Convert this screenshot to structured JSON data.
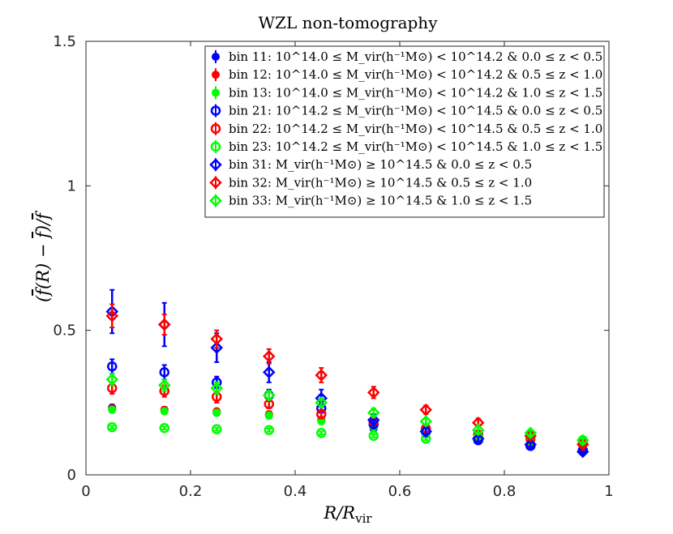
{
  "chart_data": {
    "type": "scatter",
    "title": "WZL non-tomography",
    "xlabel": "R/R_vir",
    "ylabel": "(f̄(R) − f̄)/f̄",
    "xlim": [
      0,
      1
    ],
    "ylim": [
      0,
      1.5
    ],
    "xticks": [
      "0",
      "0.2",
      "0.4",
      "0.6",
      "0.8",
      "1"
    ],
    "yticks": [
      "0",
      "0.5",
      "1",
      "1.5"
    ],
    "x": [
      0.05,
      0.15,
      0.25,
      0.35,
      0.45,
      0.55,
      0.65,
      0.75,
      0.85,
      0.95
    ],
    "legend_position": "top-right",
    "series": [
      {
        "name": "bin 11: 10^14.0 ≤ M_vir(h⁻¹M⊙) < 10^14.2 & 0.0 ≤ z < 0.5",
        "color": "#0000ff",
        "marker": "dot",
        "values": [
          0.233,
          0.225,
          0.215,
          0.205,
          0.19,
          0.16,
          0.14,
          0.12,
          0.1,
          0.08
        ],
        "errors": [
          0.01,
          0.01,
          0.01,
          0.01,
          0.01,
          0.01,
          0.01,
          0.01,
          0.01,
          0.01
        ]
      },
      {
        "name": "bin 12: 10^14.0 ≤ M_vir(h⁻¹M⊙) < 10^14.2 & 0.5 ≤ z < 1.0",
        "color": "#ff0000",
        "marker": "dot",
        "values": [
          0.23,
          0.225,
          0.22,
          0.21,
          0.19,
          0.165,
          0.14,
          0.125,
          0.11,
          0.095
        ],
        "errors": [
          0.01,
          0.01,
          0.01,
          0.01,
          0.01,
          0.01,
          0.01,
          0.01,
          0.01,
          0.01
        ]
      },
      {
        "name": "bin 13: 10^14.0 ≤ M_vir(h⁻¹M⊙) < 10^14.2 & 1.0 ≤ z < 1.5",
        "color": "#00ff00",
        "marker": "dot",
        "values": [
          0.225,
          0.22,
          0.215,
          0.205,
          0.185,
          0.165,
          0.14,
          0.125,
          0.115,
          0.1
        ],
        "errors": [
          0.01,
          0.01,
          0.01,
          0.01,
          0.01,
          0.01,
          0.01,
          0.01,
          0.01,
          0.01
        ]
      },
      {
        "name": "bin 21: 10^14.2 ≤ M_vir(h⁻¹M⊙) < 10^14.5 & 0.0 ≤ z < 0.5",
        "color": "#0000ff",
        "marker": "circle",
        "values": [
          0.375,
          0.355,
          0.32,
          0.275,
          0.23,
          0.175,
          0.15,
          0.12,
          0.1,
          0.085
        ],
        "errors": [
          0.025,
          0.025,
          0.02,
          0.02,
          0.015,
          0.015,
          0.01,
          0.01,
          0.01,
          0.01
        ]
      },
      {
        "name": "bin 22: 10^14.2 ≤ M_vir(h⁻¹M⊙) < 10^14.5 & 0.5 ≤ z < 1.0",
        "color": "#ff0000",
        "marker": "circle",
        "values": [
          0.3,
          0.29,
          0.27,
          0.245,
          0.21,
          0.185,
          0.16,
          0.14,
          0.125,
          0.11
        ],
        "errors": [
          0.02,
          0.02,
          0.02,
          0.015,
          0.015,
          0.01,
          0.01,
          0.01,
          0.01,
          0.01
        ]
      },
      {
        "name": "bin 23: 10^14.2 ≤ M_vir(h⁻¹M⊙) < 10^14.5 & 1.0 ≤ z < 1.5",
        "color": "#00ff00",
        "marker": "circle",
        "values": [
          0.165,
          0.162,
          0.158,
          0.155,
          0.145,
          0.135,
          0.125,
          0.13,
          0.135,
          0.12
        ],
        "errors": [
          0.005,
          0.005,
          0.005,
          0.005,
          0.005,
          0.005,
          0.005,
          0.005,
          0.005,
          0.005
        ]
      },
      {
        "name": "bin 31: M_vir(h⁻¹M⊙) ≥ 10^14.5 & 0.0 ≤ z < 0.5",
        "color": "#0000ff",
        "marker": "diamond",
        "values": [
          0.565,
          0.52,
          0.44,
          0.355,
          0.265,
          0.19,
          0.15,
          0.125,
          0.105,
          0.08
        ],
        "errors": [
          0.075,
          0.075,
          0.05,
          0.035,
          0.03,
          0.02,
          0.015,
          0.01,
          0.01,
          0.01
        ]
      },
      {
        "name": "bin 32: M_vir(h⁻¹M⊙) ≥ 10^14.5 & 0.5 ≤ z < 1.0",
        "color": "#ff0000",
        "marker": "diamond",
        "values": [
          0.55,
          0.52,
          0.47,
          0.41,
          0.345,
          0.285,
          0.225,
          0.18,
          0.135,
          0.105
        ],
        "errors": [
          0.04,
          0.035,
          0.03,
          0.025,
          0.025,
          0.02,
          0.015,
          0.015,
          0.01,
          0.01
        ]
      },
      {
        "name": "bin 33: M_vir(h⁻¹M⊙) ≥ 10^14.5 & 1.0 ≤ z < 1.5",
        "color": "#00ff00",
        "marker": "diamond",
        "values": [
          0.33,
          0.31,
          0.3,
          0.275,
          0.25,
          0.215,
          0.185,
          0.155,
          0.145,
          0.12
        ],
        "errors": [
          0.02,
          0.02,
          0.02,
          0.015,
          0.015,
          0.015,
          0.01,
          0.01,
          0.01,
          0.01
        ]
      }
    ]
  }
}
